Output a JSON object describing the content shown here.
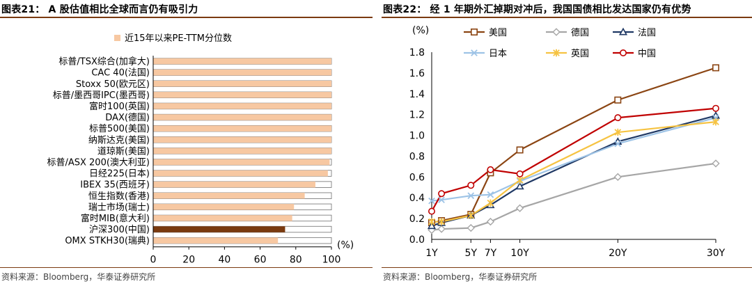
{
  "left": {
    "title": "图表21： A 股估值相比全球而言仍有吸引力",
    "source": "资料来源：Bloomberg，华泰证券研究所",
    "chart_data": {
      "type": "bar",
      "orientation": "horizontal",
      "legend": [
        "近15年以来PE-TTM分位数"
      ],
      "legend_position": "top",
      "categories": [
        "标普/TSX综合(加拿大)",
        "CAC 40(法国)",
        "Stoxx 50(欧元区)",
        "标普/墨西哥IPC(墨西哥)",
        "富时100(英国)",
        "DAX(德国)",
        "标普500(美国)",
        "纳斯达克(美国)",
        "道琼斯(美国)",
        "标普/ASX 200(澳大利亚)",
        "日经225(日本)",
        "IBEX 35(西班牙)",
        "恒生指数(香港)",
        "瑞士市场(瑞士)",
        "富时MIB(意大利)",
        "沪深300(中国)",
        "OMX STKH30(瑞典)"
      ],
      "values": [
        100,
        100,
        100,
        100,
        100,
        100,
        100,
        100,
        100,
        99,
        98,
        91,
        85,
        79,
        78,
        74,
        70
      ],
      "highlight_index": 15,
      "xlim": [
        0,
        100
      ],
      "xticks": [
        "0",
        "20",
        "40",
        "60",
        "80",
        "100"
      ],
      "xunit": "(%)",
      "colors": {
        "bar": "#f7c8a2",
        "bar_edge": "#6e6e6e",
        "highlight": "#7a3a10",
        "track": "#ffffff"
      }
    }
  },
  "right": {
    "title": "图表22： 经 1 年期外汇掉期对冲后，我国国债相比发达国家仍有优势",
    "source": "资料来源：Bloomberg，华泰证券研究所",
    "chart_data": {
      "type": "line",
      "x": [
        1,
        2,
        5,
        7,
        10,
        20,
        30
      ],
      "xticks": [
        "1Y",
        "5Y",
        "7Y",
        "10Y",
        "20Y",
        "30Y"
      ],
      "xtick_values": [
        1,
        5,
        7,
        10,
        20,
        30
      ],
      "yunit": "(%)",
      "ylim": [
        0,
        1.8
      ],
      "yticks": [
        "0.0",
        "0.2",
        "0.4",
        "0.6",
        "0.8",
        "1.0",
        "1.2",
        "1.4",
        "1.6",
        "1.8"
      ],
      "legend_position": "top",
      "series": [
        {
          "name": "美国",
          "values": [
            0.16,
            0.18,
            0.24,
            0.64,
            0.86,
            1.34,
            1.65
          ],
          "color": "#8b4513",
          "marker": "square"
        },
        {
          "name": "德国",
          "values": [
            0.09,
            0.1,
            0.11,
            0.17,
            0.3,
            0.6,
            0.73
          ],
          "color": "#a6a6a6",
          "marker": "diamond"
        },
        {
          "name": "法国",
          "values": [
            0.13,
            0.16,
            0.23,
            0.33,
            0.51,
            0.94,
            1.19
          ],
          "color": "#1f3864",
          "marker": "triangle"
        },
        {
          "name": "日本",
          "values": [
            0.37,
            0.38,
            0.42,
            0.43,
            0.56,
            0.92,
            1.17
          ],
          "color": "#9dc3e6",
          "marker": "x"
        },
        {
          "name": "英国",
          "values": [
            0.17,
            0.17,
            0.23,
            0.35,
            0.57,
            1.03,
            1.13
          ],
          "color": "#f6c342",
          "marker": "star"
        },
        {
          "name": "中国",
          "values": [
            0.27,
            0.44,
            0.52,
            0.67,
            0.63,
            1.17,
            1.26
          ],
          "color": "#c00000",
          "marker": "circle"
        }
      ]
    }
  }
}
